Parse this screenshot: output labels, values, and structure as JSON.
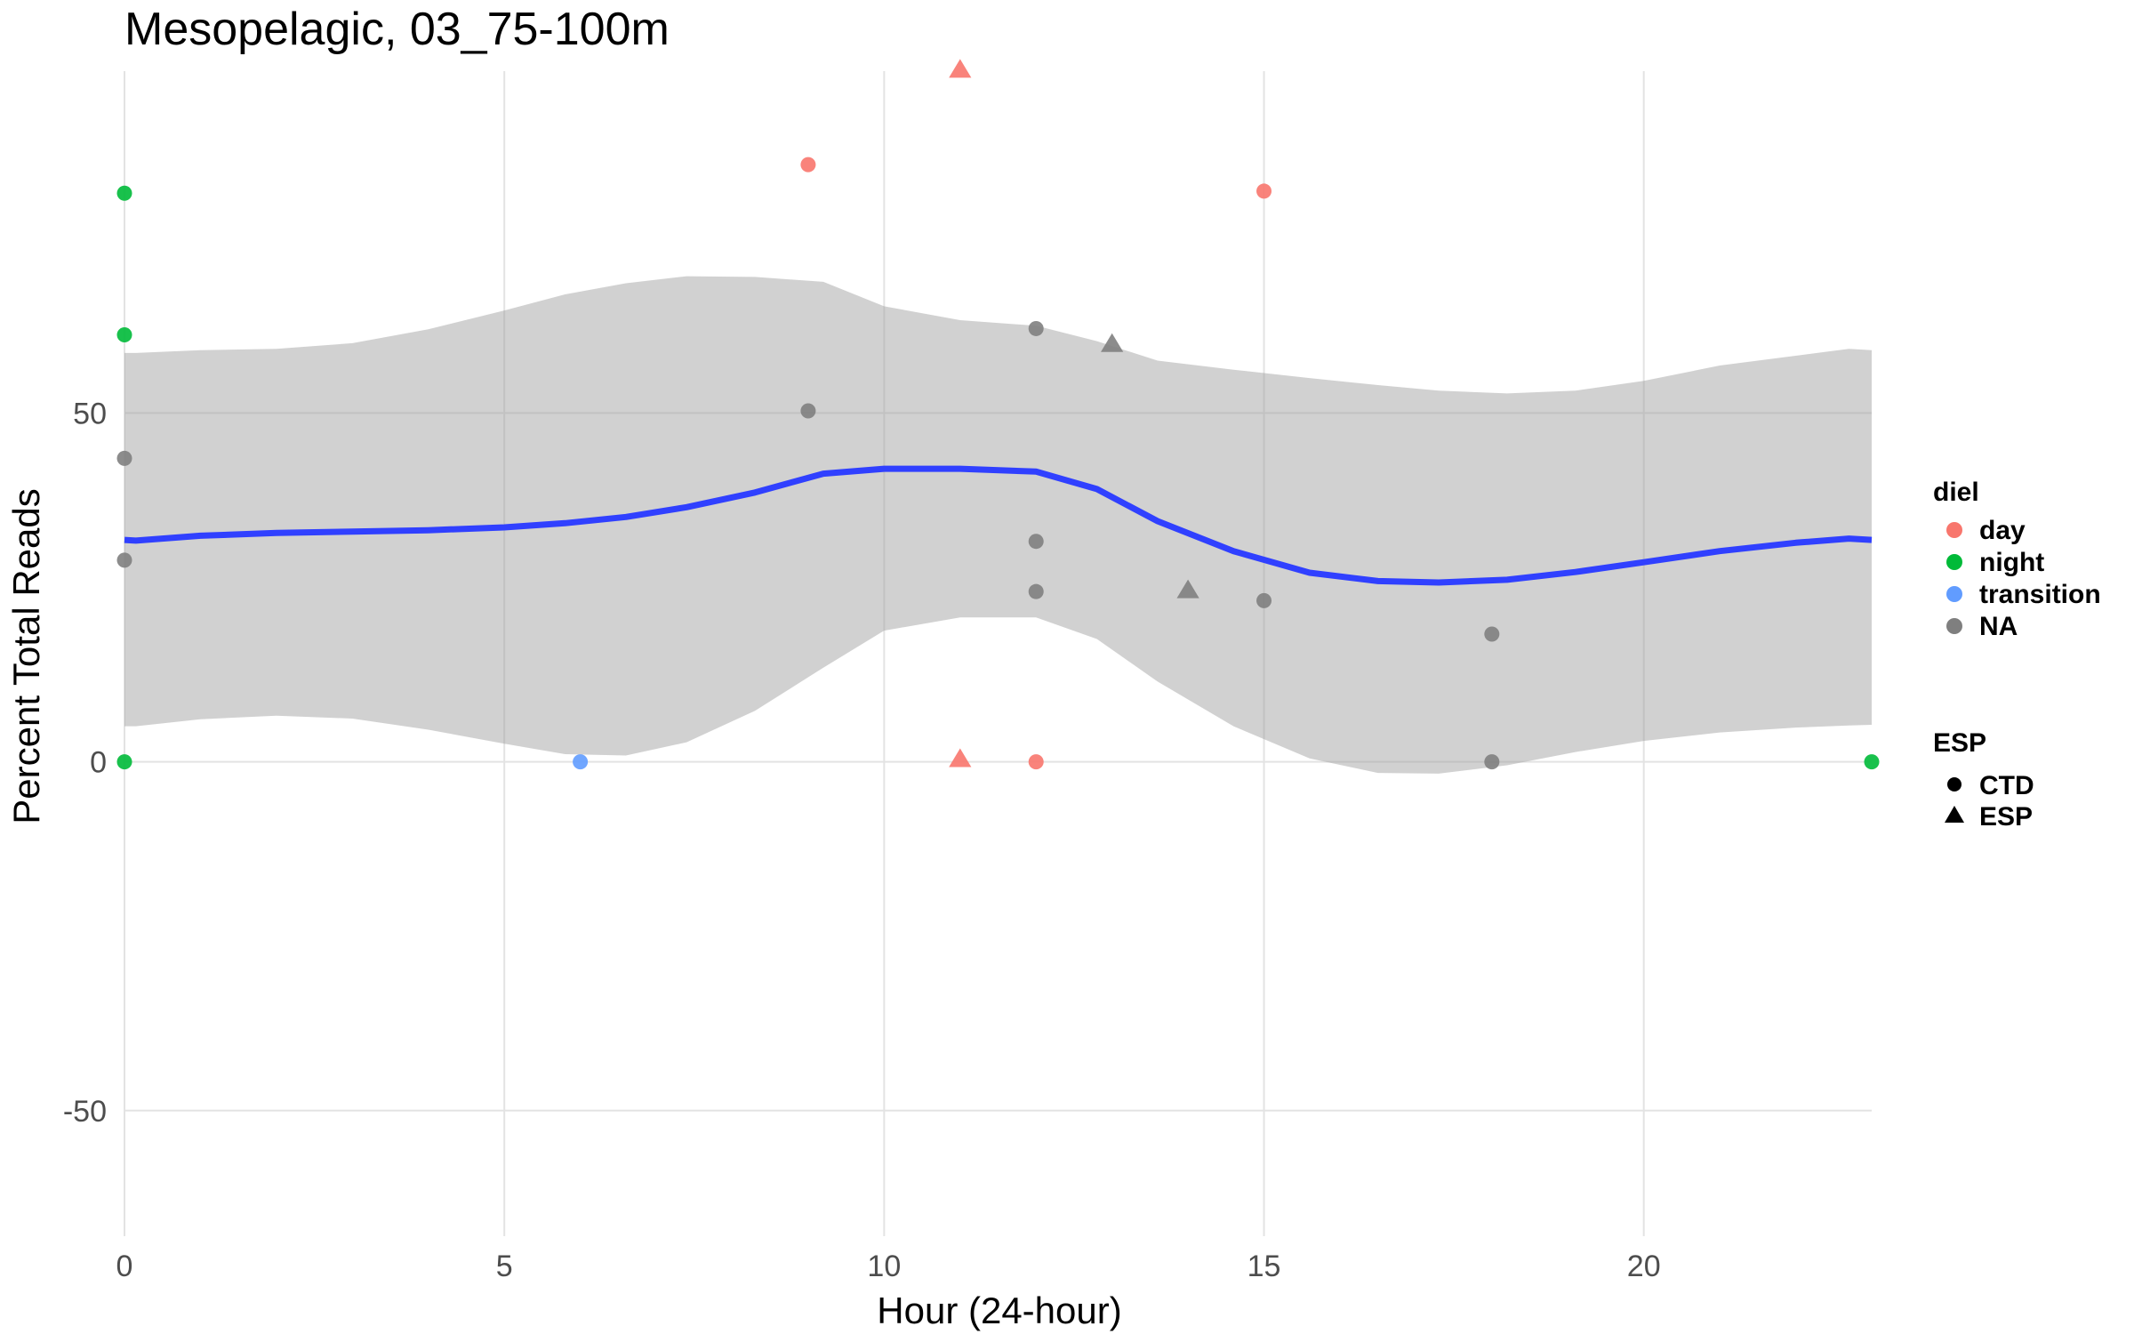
{
  "chart_data": {
    "type": "scatter",
    "title": "Mesopelagic, 03_75-100m",
    "xlabel": "Hour (24-hour)",
    "ylabel": "Percent Total Reads",
    "xlim": [
      0,
      23
    ],
    "ylim": [
      -68,
      99
    ],
    "x_ticks": [
      0,
      5,
      10,
      15,
      20
    ],
    "y_ticks": [
      -50,
      0,
      50
    ],
    "grid": true,
    "legend_position": "right",
    "legend": {
      "diel_title": "diel",
      "diel_items": [
        {
          "label": "day",
          "color": "#F8766D"
        },
        {
          "label": "night",
          "color": "#00BA38"
        },
        {
          "label": "transition",
          "color": "#619CFF"
        },
        {
          "label": "NA",
          "color": "#7F7F7F"
        }
      ],
      "esp_title": "ESP",
      "esp_items": [
        {
          "label": "CTD",
          "shape": "circle"
        },
        {
          "label": "ESP",
          "shape": "triangle"
        }
      ]
    },
    "points": [
      {
        "x": 0,
        "y": 81.5,
        "diel": "night",
        "esp": "CTD"
      },
      {
        "x": 0,
        "y": 61.2,
        "diel": "night",
        "esp": "CTD"
      },
      {
        "x": 0,
        "y": 43.5,
        "diel": "NA",
        "esp": "CTD"
      },
      {
        "x": 0,
        "y": 28.9,
        "diel": "NA",
        "esp": "CTD"
      },
      {
        "x": 0,
        "y": 0,
        "diel": "night",
        "esp": "CTD"
      },
      {
        "x": 6,
        "y": 0,
        "diel": "transition",
        "esp": "CTD"
      },
      {
        "x": 9,
        "y": 85.6,
        "diel": "day",
        "esp": "CTD"
      },
      {
        "x": 9,
        "y": 50.3,
        "diel": "NA",
        "esp": "CTD"
      },
      {
        "x": 11,
        "y": 99.2,
        "diel": "day",
        "esp": "ESP"
      },
      {
        "x": 11,
        "y": 0.4,
        "diel": "day",
        "esp": "ESP"
      },
      {
        "x": 12,
        "y": 62.1,
        "diel": "NA",
        "esp": "CTD"
      },
      {
        "x": 12,
        "y": 31.6,
        "diel": "NA",
        "esp": "CTD"
      },
      {
        "x": 12,
        "y": 24.4,
        "diel": "NA",
        "esp": "CTD"
      },
      {
        "x": 12,
        "y": 0,
        "diel": "day",
        "esp": "CTD"
      },
      {
        "x": 13,
        "y": 59.9,
        "diel": "NA",
        "esp": "ESP"
      },
      {
        "x": 14,
        "y": 24.6,
        "diel": "NA",
        "esp": "ESP"
      },
      {
        "x": 15,
        "y": 81.8,
        "diel": "day",
        "esp": "CTD"
      },
      {
        "x": 15,
        "y": 23.1,
        "diel": "NA",
        "esp": "CTD"
      },
      {
        "x": 18,
        "y": 18.3,
        "diel": "NA",
        "esp": "CTD"
      },
      {
        "x": 18,
        "y": 0,
        "diel": "NA",
        "esp": "CTD"
      },
      {
        "x": 23,
        "y": 0,
        "diel": "night",
        "esp": "CTD"
      }
    ],
    "smooth": {
      "color": "#3040FF",
      "x": [
        0,
        0.15,
        1,
        2,
        3,
        4,
        5,
        5.8,
        6.6,
        7.4,
        8.3,
        9.2,
        10,
        11,
        12,
        12.8,
        13.6,
        14.6,
        15.6,
        16.5,
        17.3,
        18.2,
        19.1,
        20,
        21,
        22,
        22.7,
        23
      ],
      "y": [
        31.8,
        31.7,
        32.4,
        32.8,
        33,
        33.2,
        33.6,
        34.2,
        35.1,
        36.5,
        38.6,
        41.3,
        42,
        42,
        41.6,
        39.1,
        34.5,
        30.2,
        27.1,
        25.9,
        25.7,
        26.1,
        27.2,
        28.6,
        30.2,
        31.4,
        32,
        31.8
      ],
      "upper": [
        58.6,
        58.6,
        59,
        59.2,
        60,
        62,
        64.7,
        67,
        68.6,
        69.6,
        69.5,
        68.8,
        65.3,
        63.3,
        62.5,
        60.3,
        57.5,
        56.2,
        55,
        54,
        53.2,
        52.8,
        53.2,
        54.6,
        56.8,
        58.2,
        59.2,
        59
      ],
      "lower": [
        5.1,
        5.1,
        6.1,
        6.6,
        6.2,
        4.6,
        2.6,
        1.1,
        0.9,
        2.8,
        7.3,
        13.5,
        18.8,
        20.7,
        20.7,
        17.6,
        11.5,
        5.1,
        0.5,
        -1.6,
        -1.7,
        -0.5,
        1.4,
        3,
        4.2,
        4.9,
        5.2,
        5.3
      ]
    }
  }
}
